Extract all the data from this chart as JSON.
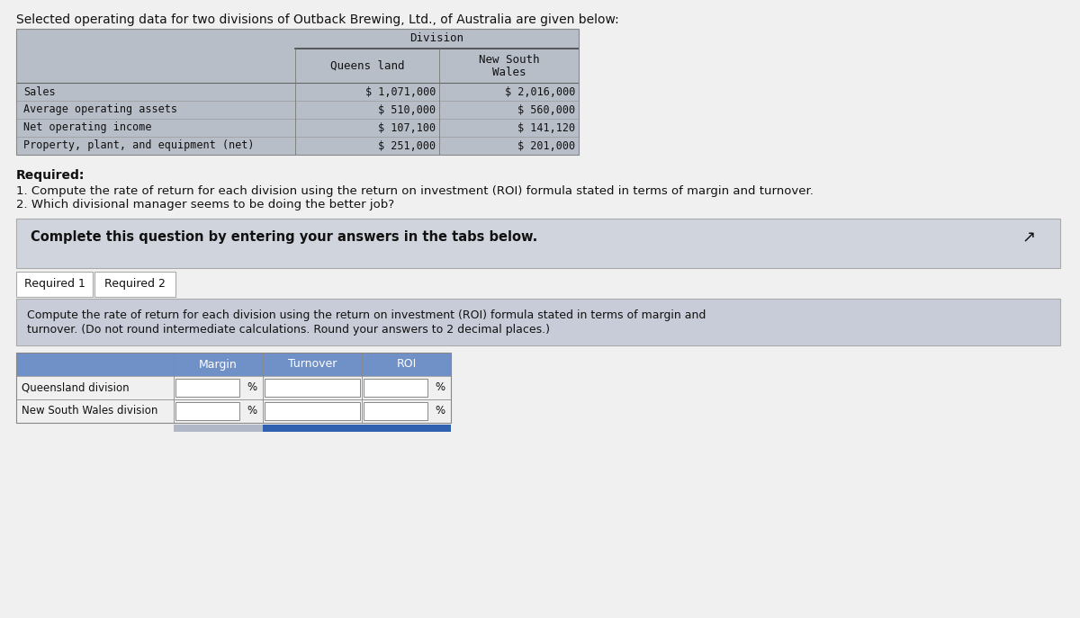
{
  "title": "Selected operating data for two divisions of Outback Brewing, Ltd., of Australia are given below:",
  "table1_header_top": "Division",
  "table1_col1_header": "Queens land",
  "table1_col2_header_line1": "New South",
  "table1_col2_header_line2": "Wales",
  "table1_rows": [
    "Sales",
    "Average operating assets",
    "Net operating income",
    "Property, plant, and equipment (net)"
  ],
  "table1_col1_values": [
    "$ 1,071,000",
    "$ 510,000",
    "$ 107,100",
    "$ 251,000"
  ],
  "table1_col2_values": [
    "$ 2,016,000",
    "$ 560,000",
    "$ 141,120",
    "$ 201,000"
  ],
  "required_text": "Required:",
  "required_items": [
    "1. Compute the rate of return for each division using the return on investment (ROI) formula stated in terms of margin and turnover.",
    "2. Which divisional manager seems to be doing the better job?"
  ],
  "complete_text": "Complete this question by entering your answers in the tabs below.",
  "tab1_label": "Required 1",
  "tab2_label": "Required 2",
  "instruction_text_line1": "Compute the rate of return for each division using the return on investment (ROI) formula stated in terms of margin and",
  "instruction_text_line2": "turnover. (Do not round intermediate calculations. Round your answers to 2 decimal places.)",
  "table2_headers": [
    "Margin",
    "Turnover",
    "ROI"
  ],
  "table2_rows": [
    "Queensland division",
    "New South Wales division"
  ],
  "page_bg": "#f0f0f0",
  "white": "#ffffff",
  "table_top_bg": "#b8bec8",
  "table_top_line_color": "#555555",
  "table_row_label_bg": "#d8dce4",
  "table_row_label_text": "#111111",
  "table_value_text": "#111111",
  "complete_box_bg": "#d0d4dc",
  "complete_box_border": "#aaaaaa",
  "tab_active_bg": "#ffffff",
  "tab_inactive_bg": "#e0e0e0",
  "tab_border": "#aaaaaa",
  "instruction_box_bg": "#c8ccd8",
  "instruction_box_border": "#aaaaaa",
  "inp_header_bg": "#7090c8",
  "inp_header_text": "#ffffff",
  "inp_label_bg": "#f0f0f0",
  "inp_row_border": "#888888",
  "inp_field_bg": "#ffffff",
  "inp_pct_bg": "#d8d8d8",
  "dark_text": "#111111",
  "gray_text": "#444444",
  "bottom_bar1": "#b0b8c8",
  "bottom_bar2": "#3060b0"
}
